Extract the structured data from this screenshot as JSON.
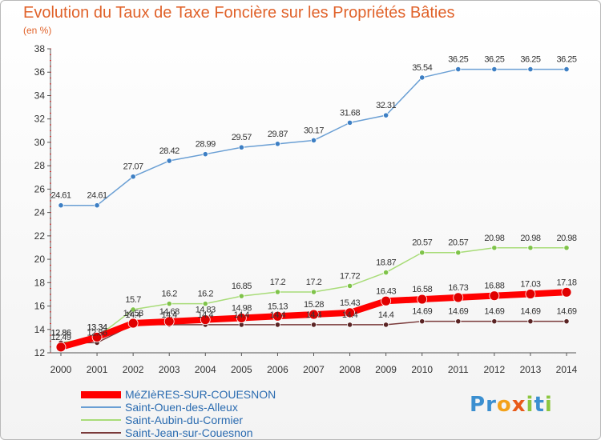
{
  "title": "Evolution du Taux de Taxe Foncière sur les Propriétés Bâties",
  "subtitle": "(en %)",
  "logo": [
    "P",
    "r",
    "o",
    "x",
    "i",
    "t",
    "i"
  ],
  "chart_data": {
    "type": "line",
    "x": [
      "2000",
      "2001",
      "2002",
      "2003",
      "2004",
      "2005",
      "2006",
      "2007",
      "2008",
      "2009",
      "2010",
      "2011",
      "2012",
      "2013",
      "2014"
    ],
    "ylim": [
      12,
      38
    ],
    "yticks": [
      12,
      14,
      16,
      18,
      20,
      22,
      24,
      26,
      28,
      30,
      32,
      34,
      36,
      38
    ],
    "grid": false,
    "legend_position": "bottom-left",
    "series": [
      {
        "name": "Saint-Ouen-des-Alleux",
        "color": "#6a9fd4",
        "marker": "#3d7fc4",
        "width": 1.5,
        "values": [
          24.61,
          24.61,
          27.07,
          28.42,
          28.99,
          29.57,
          29.87,
          30.17,
          31.68,
          32.31,
          35.54,
          36.25,
          36.25,
          36.25,
          36.25
        ],
        "labels": [
          "24.61",
          "24.61",
          "27.07",
          "28.42",
          "28.99",
          "29.57",
          "29.87",
          "30.17",
          "31.68",
          "32.31",
          "35.54",
          "36.25",
          "36.25",
          "36.25",
          "36.25"
        ]
      },
      {
        "name": "Saint-Aubin-du-Cormier",
        "color": "#a8dc78",
        "marker": "#7fc34a",
        "width": 1.5,
        "values": [
          12.86,
          13.34,
          15.7,
          16.2,
          16.2,
          16.85,
          17.2,
          17.2,
          17.72,
          18.87,
          20.57,
          20.57,
          20.98,
          20.98,
          20.98
        ],
        "labels": [
          "12.86",
          "13.34",
          "15.7",
          "16.2",
          "16.2",
          "16.85",
          "17.2",
          "17.2",
          "17.72",
          "18.87",
          "20.57",
          "20.57",
          "20.98",
          "20.98",
          "20.98"
        ]
      },
      {
        "name": "Saint-Jean-sur-Couesnon",
        "color": "#7a3a3a",
        "marker": "#5a2424",
        "width": 1.5,
        "values": [
          12.86,
          12.86,
          14.4,
          14.4,
          14.4,
          14.4,
          14.4,
          14.4,
          14.4,
          14.4,
          14.69,
          14.69,
          14.69,
          14.69,
          14.69
        ],
        "labels": [
          "12.86",
          "12.86",
          "14.4",
          "14.4",
          "14.4",
          "14.4",
          "14.4",
          "14.4",
          "14.4",
          "14.4",
          "14.69",
          "14.69",
          "14.69",
          "14.69",
          "14.69"
        ]
      },
      {
        "name": "MéZIèRES-SUR-COUESNON",
        "color": "#ff0000",
        "marker": "#e00000",
        "width": 8,
        "values": [
          12.49,
          13.34,
          14.53,
          14.68,
          14.83,
          14.98,
          15.13,
          15.28,
          15.43,
          16.43,
          16.58,
          16.73,
          16.88,
          17.03,
          17.18
        ],
        "labels": [
          "12.49",
          "13.34",
          "14.53",
          "14.68",
          "14.83",
          "14.98",
          "15.13",
          "15.28",
          "15.43",
          "16.43",
          "16.58",
          "16.73",
          "16.88",
          "17.03",
          "17.18"
        ]
      }
    ]
  }
}
